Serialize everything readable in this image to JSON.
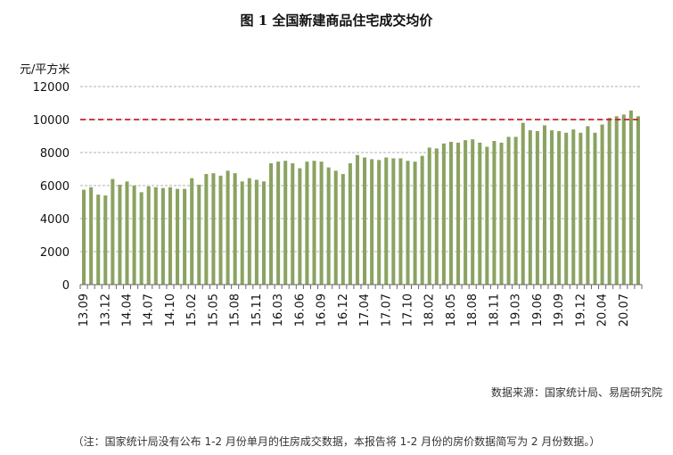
{
  "title": "图 1    全国新建商品住宅成交均价",
  "unit_label": "元/平方米",
  "source": "数据来源：国家统计局、易居研究院",
  "note": "（注：国家统计局没有公布 1-2 月份单月的住房成交数据，本报告将 1-2 月份的房价数据简写为 2 月份数据。）",
  "colors": {
    "bar": "#8aa361",
    "reference_line": "#c0262a",
    "grid": "#999999"
  },
  "chart_data": {
    "type": "bar",
    "categories": [
      "13.09",
      "13.10",
      "13.11",
      "13.12",
      "14.02",
      "14.03",
      "14.04",
      "14.05",
      "14.06",
      "14.07",
      "14.08",
      "14.09",
      "14.10",
      "14.11",
      "14.12",
      "15.02",
      "15.03",
      "15.04",
      "15.05",
      "15.06",
      "15.07",
      "15.08",
      "15.09",
      "15.10",
      "15.11",
      "15.12",
      "16.02",
      "16.03",
      "16.04",
      "16.05",
      "16.06",
      "16.07",
      "16.08",
      "16.09",
      "16.10",
      "16.11",
      "16.12",
      "17.02",
      "17.03",
      "17.04",
      "17.05",
      "17.06",
      "17.07",
      "17.08",
      "17.09",
      "17.10",
      "17.11",
      "17.12",
      "18.02",
      "18.03",
      "18.04",
      "18.05",
      "18.06",
      "18.07",
      "18.08",
      "18.09",
      "18.10",
      "18.11",
      "18.12",
      "19.02",
      "19.03",
      "19.04",
      "19.05",
      "19.06",
      "19.07",
      "19.08",
      "19.09",
      "19.10",
      "19.11",
      "19.12",
      "20.02",
      "20.03",
      "20.04",
      "20.05",
      "20.06",
      "20.07",
      "20.08",
      "20.09"
    ],
    "tick_labels": [
      "13.09",
      "13.12",
      "14.04",
      "14.07",
      "14.10",
      "15.02",
      "15.05",
      "15.08",
      "15.11",
      "16.03",
      "16.06",
      "16.09",
      "16.12",
      "17.04",
      "17.07",
      "17.10",
      "18.02",
      "18.05",
      "18.08",
      "18.11",
      "19.03",
      "19.06",
      "19.09",
      "19.12",
      "20.04",
      "20.07"
    ],
    "values": [
      5750,
      5900,
      5450,
      5400,
      6400,
      6050,
      6250,
      6000,
      5600,
      5950,
      5900,
      5850,
      5900,
      5800,
      5800,
      6450,
      6050,
      6700,
      6750,
      6600,
      6900,
      6750,
      6250,
      6450,
      6350,
      6250,
      7350,
      7450,
      7500,
      7350,
      7050,
      7450,
      7500,
      7450,
      7100,
      6900,
      6700,
      7350,
      7850,
      7700,
      7600,
      7550,
      7700,
      7650,
      7650,
      7500,
      7450,
      7800,
      8300,
      8250,
      8550,
      8650,
      8600,
      8750,
      8800,
      8600,
      8350,
      8700,
      8600,
      8950,
      8950,
      9800,
      9350,
      9300,
      9650,
      9350,
      9300,
      9200,
      9400,
      9200,
      9600,
      9200,
      9700,
      10100,
      10200,
      10300,
      10550,
      10200
    ],
    "reference_line": 10000,
    "ylim": [
      0,
      12000
    ],
    "y_ticks": [
      0,
      2000,
      4000,
      6000,
      8000,
      10000,
      12000
    ],
    "grid": true,
    "legend": "none"
  }
}
